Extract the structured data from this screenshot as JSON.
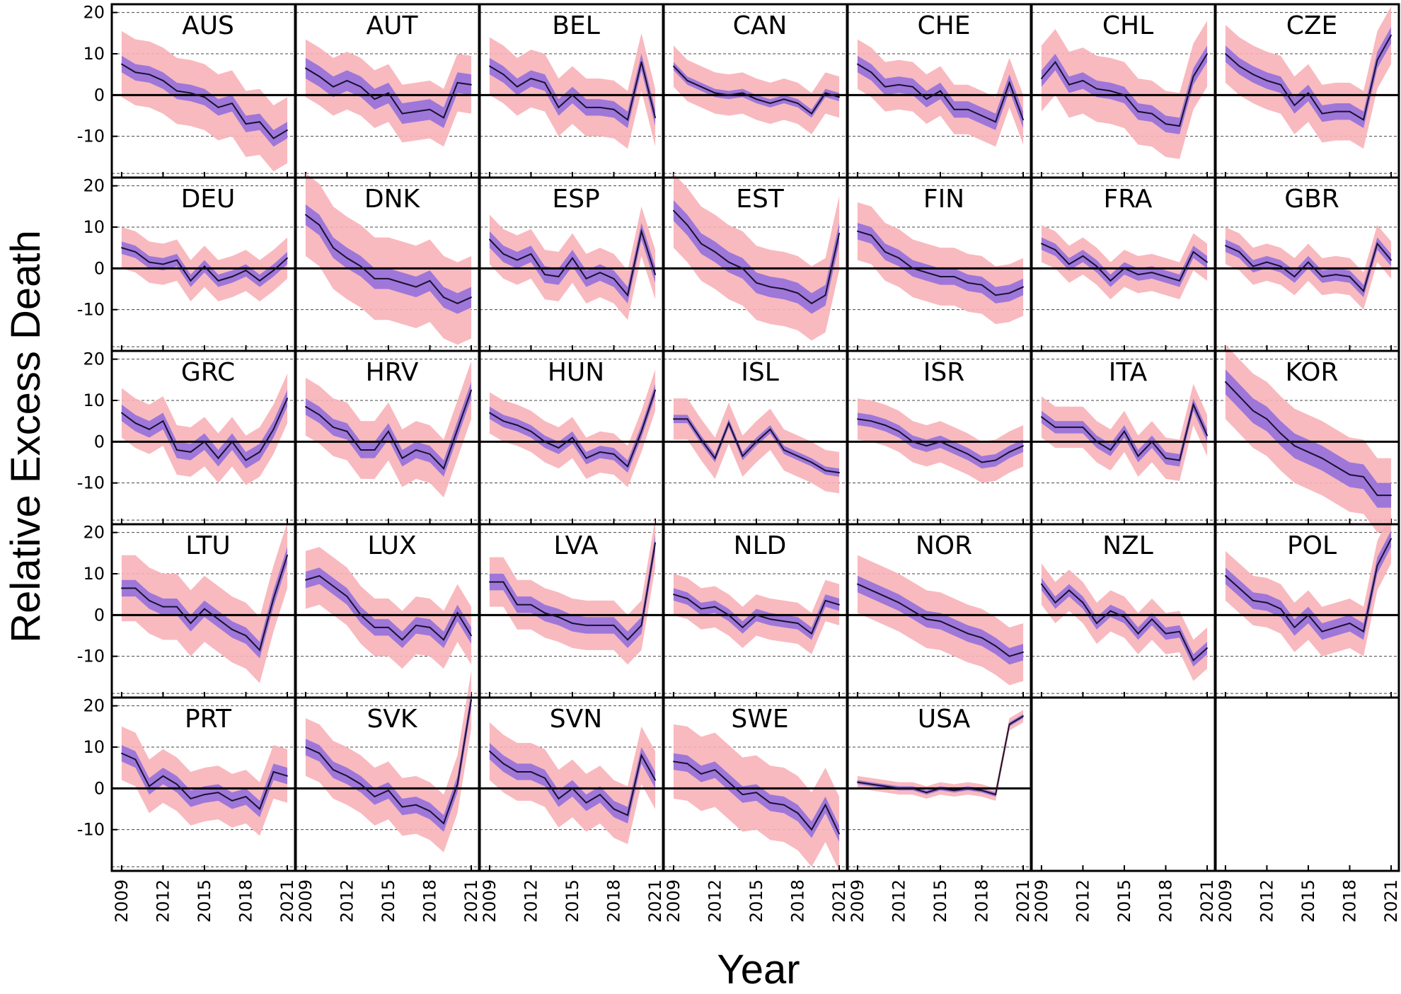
{
  "chart_data": {
    "type": "line",
    "xlabel": "Year",
    "ylabel": "Relative Excess Death",
    "grid": {
      "cols": 7,
      "rows": 5
    },
    "x_ticks": [
      2009,
      2012,
      2015,
      2018,
      2021
    ],
    "x_tick_labels": [
      "2009",
      "2012",
      "2015",
      "2018",
      "2021"
    ],
    "y_ticks": [
      20,
      10,
      0,
      -10
    ],
    "y_tick_labels": [
      "20",
      "10",
      "0",
      "-10"
    ],
    "ylim": [
      -20,
      22
    ],
    "xlim": [
      2008.8,
      2021.1
    ],
    "years": [
      2009,
      2010,
      2011,
      2012,
      2013,
      2014,
      2015,
      2016,
      2017,
      2018,
      2019,
      2020,
      2021
    ],
    "colors": {
      "line": "#1a1030",
      "inner_band": "#9370db",
      "outer_band": "#f7b3b8",
      "zero_line": "#000000"
    },
    "panels": [
      {
        "name": "AUS",
        "values": [
          7.5,
          5.5,
          5,
          3.5,
          1,
          0.5,
          -0.5,
          -3,
          -2,
          -7,
          -6.5,
          -10.5,
          -8.5
        ],
        "inner": 2.0,
        "outer": 8.0
      },
      {
        "name": "AUT",
        "values": [
          6.5,
          4.5,
          2,
          3.5,
          2,
          -1,
          0.5,
          -4.5,
          -4,
          -3.5,
          -5.5,
          3,
          2.5
        ],
        "inner": 2.5,
        "outer": 7.0
      },
      {
        "name": "BEL",
        "values": [
          7,
          5,
          2,
          4,
          3,
          -3,
          0,
          -3,
          -3,
          -3.5,
          -6,
          8,
          -5.5
        ],
        "inner": 2.0,
        "outer": 7.0
      },
      {
        "name": "CAN",
        "values": [
          7,
          3.5,
          2,
          0.5,
          0,
          0.5,
          -1,
          -2,
          -1,
          -2,
          -4.5,
          0.5,
          -0.5
        ],
        "inner": 1.0,
        "outer": 5.0
      },
      {
        "name": "CHE",
        "values": [
          7.5,
          5.5,
          2,
          2.5,
          2,
          -1,
          1,
          -3.5,
          -3.5,
          -5,
          -6.5,
          3,
          -6
        ],
        "inner": 2.0,
        "outer": 6.0
      },
      {
        "name": "CHL",
        "values": [
          4,
          8,
          2.5,
          3.5,
          1.5,
          1,
          0,
          -4,
          -4.5,
          -7,
          -7.5,
          4.5,
          10
        ],
        "inner": 2.0,
        "outer": 8.0
      },
      {
        "name": "CZE",
        "values": [
          10,
          7,
          5,
          3.5,
          2.5,
          -2.5,
          0.5,
          -4.5,
          -4,
          -4,
          -6,
          8.5,
          14.5
        ],
        "inner": 2.0,
        "outer": 7.0
      },
      {
        "name": "DEU",
        "values": [
          5,
          4,
          1.5,
          1,
          2,
          -3,
          0.5,
          -3,
          -2,
          -0.5,
          -3,
          -0.5,
          2.5
        ],
        "inner": 1.5,
        "outer": 5.0
      },
      {
        "name": "DNK",
        "values": [
          13,
          10.5,
          5,
          2.5,
          0.5,
          -2.5,
          -2.5,
          -3.5,
          -4.5,
          -3,
          -7,
          -8.5,
          -7
        ],
        "inner": 2.5,
        "outer": 10.0
      },
      {
        "name": "ESP",
        "values": [
          7,
          3.5,
          2,
          3.5,
          -1.5,
          -2,
          2.5,
          -2.5,
          -1,
          -2.5,
          -6.5,
          9,
          -1.5
        ],
        "inner": 2.0,
        "outer": 6.0
      },
      {
        "name": "EST",
        "values": [
          14,
          10.5,
          6,
          4,
          1.5,
          0,
          -3.5,
          -4.5,
          -5,
          -6,
          -8.5,
          -6.5,
          8.5
        ],
        "inner": 2.5,
        "outer": 9.0
      },
      {
        "name": "FIN",
        "values": [
          9,
          8,
          4,
          2.5,
          0,
          -1,
          -2,
          -2,
          -3.5,
          -4,
          -6.5,
          -6,
          -4.5
        ],
        "inner": 2.0,
        "outer": 7.0
      },
      {
        "name": "FRA",
        "values": [
          6,
          4.5,
          1,
          3,
          0.5,
          -3,
          0,
          -1.5,
          -1,
          -2,
          -3,
          4,
          1.5
        ],
        "inner": 1.5,
        "outer": 4.5
      },
      {
        "name": "GBR",
        "values": [
          5.5,
          4,
          0.5,
          1.5,
          0.5,
          -2,
          1.5,
          -2,
          -1.5,
          -2,
          -5.5,
          6,
          2
        ],
        "inner": 1.5,
        "outer": 4.5
      },
      {
        "name": "GRC",
        "values": [
          7,
          4.5,
          3,
          5,
          -2,
          -2.5,
          0,
          -4,
          0,
          -4.5,
          -2.5,
          3,
          10.5
        ],
        "inner": 2.0,
        "outer": 6.0
      },
      {
        "name": "HRV",
        "values": [
          8.5,
          6.5,
          3.5,
          2.5,
          -2,
          -2,
          2.5,
          -4,
          -2,
          -3,
          -6.5,
          3,
          12.5
        ],
        "inner": 2.0,
        "outer": 7.0
      },
      {
        "name": "HUN",
        "values": [
          7,
          5,
          4,
          2.5,
          0,
          -1.5,
          1,
          -4,
          -2.5,
          -3,
          -6,
          2.5,
          12.5
        ],
        "inner": 1.5,
        "outer": 5.0
      },
      {
        "name": "ISL",
        "values": [
          5.5,
          5.5,
          0.5,
          -4,
          4.5,
          -3.5,
          0,
          3,
          -2,
          -3.5,
          -5,
          -7,
          -7.5
        ],
        "inner": 1.0,
        "outer": 5.0
      },
      {
        "name": "ISR",
        "values": [
          5.5,
          5,
          4,
          2.5,
          0,
          -1,
          0,
          -1.5,
          -3,
          -5,
          -4.5,
          -2.5,
          -1
        ],
        "inner": 1.5,
        "outer": 5.0
      },
      {
        "name": "ITA",
        "values": [
          6,
          3.5,
          3.5,
          3.5,
          0,
          -2,
          2.5,
          -3.5,
          0,
          -4,
          -4.5,
          9,
          1.5
        ],
        "inner": 1.5,
        "outer": 5.0
      },
      {
        "name": "KOR",
        "values": [
          14.5,
          11,
          7.5,
          5.5,
          2,
          -1,
          -2.5,
          -4,
          -6,
          -8,
          -8.5,
          -13,
          -13
        ],
        "inner": 3.0,
        "outer": 9.0
      },
      {
        "name": "LTU",
        "values": [
          6.5,
          6.5,
          3.5,
          2,
          2,
          -2,
          1.5,
          -1,
          -3.5,
          -5,
          -8.5,
          4,
          14.5
        ],
        "inner": 2.0,
        "outer": 8.0
      },
      {
        "name": "LUX",
        "values": [
          8.5,
          9.5,
          7,
          4.5,
          0,
          -3,
          -3,
          -6,
          -2.5,
          -3,
          -6,
          0.5,
          -5
        ],
        "inner": 2.0,
        "outer": 7.0
      },
      {
        "name": "LVA",
        "values": [
          8,
          8,
          2.5,
          2.5,
          0.5,
          -0.5,
          -2,
          -2.5,
          -2.5,
          -2.5,
          -6,
          -2.5,
          17.5
        ],
        "inner": 2.0,
        "outer": 6.0
      },
      {
        "name": "NLD",
        "values": [
          5,
          4,
          1.5,
          2,
          0,
          -3,
          0,
          -1,
          -1.5,
          -2,
          -4.5,
          3.5,
          2.5
        ],
        "inner": 1.5,
        "outer": 5.0
      },
      {
        "name": "NOR",
        "values": [
          7.5,
          6,
          4.5,
          3,
          1,
          -1,
          -1.5,
          -3,
          -4.5,
          -5.5,
          -7.5,
          -10,
          -9
        ],
        "inner": 2.0,
        "outer": 7.0
      },
      {
        "name": "NZL",
        "values": [
          7.5,
          3,
          6,
          3,
          -2,
          1,
          -0.5,
          -4.5,
          -1,
          -4.5,
          -4,
          -11,
          -8
        ],
        "inner": 1.5,
        "outer": 5.0
      },
      {
        "name": "POL",
        "values": [
          9.5,
          6.5,
          3.5,
          3,
          1.5,
          -3,
          0,
          -4,
          -3,
          -2,
          -4,
          12,
          18.5
        ],
        "inner": 2.0,
        "outer": 6.0
      },
      {
        "name": "PRT",
        "values": [
          8.5,
          7,
          0.5,
          3,
          1,
          -2.5,
          -1.5,
          -1,
          -3,
          -2,
          -5,
          4,
          3
        ],
        "inner": 2.0,
        "outer": 6.5
      },
      {
        "name": "SVK",
        "values": [
          10,
          8.5,
          4.5,
          3,
          1,
          -2,
          -0.5,
          -4.5,
          -4,
          -5.5,
          -8.5,
          1,
          21.5
        ],
        "inner": 2.0,
        "outer": 7.0
      },
      {
        "name": "SVN",
        "values": [
          9,
          6,
          4,
          4,
          2.5,
          -2.5,
          0,
          -3.5,
          -1.5,
          -5,
          -6.5,
          8,
          2
        ],
        "inner": 2.0,
        "outer": 7.0
      },
      {
        "name": "SWE",
        "values": [
          6.5,
          6,
          3.5,
          4.5,
          1.5,
          -1.5,
          -1,
          -3.5,
          -4,
          -6,
          -10,
          -4,
          -11
        ],
        "inner": 2.0,
        "outer": 9.0
      },
      {
        "name": "USA",
        "values": [
          1.5,
          1,
          0.5,
          0,
          0,
          -1,
          0,
          -0.5,
          0,
          -0.5,
          -1.5,
          15.5,
          17.5
        ],
        "inner": 0.5,
        "outer": 1.5
      }
    ]
  }
}
